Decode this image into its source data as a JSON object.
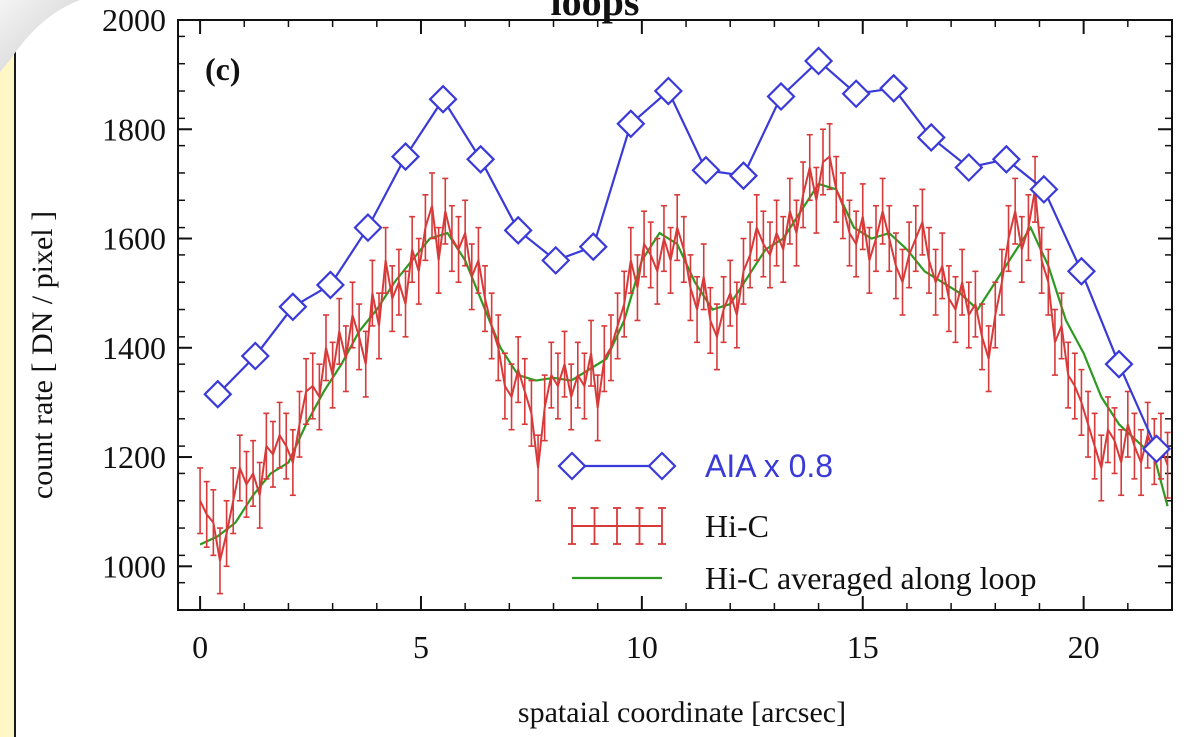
{
  "figure": {
    "title": "loops",
    "panel_label": "(c)"
  },
  "colors": {
    "aia": "#3a3ad8",
    "hic": "#d83a3a",
    "hic_avg": "#2e9a22",
    "axis": "#111111",
    "frame_accent": "#fff8c6"
  },
  "chart_data": {
    "type": "line",
    "title": "loops",
    "xlabel": "spataial coordinate  [arcsec]",
    "ylabel": "count rate  [ DN / pixel ]",
    "xlim": [
      -0.5,
      22
    ],
    "ylim": [
      920,
      2000
    ],
    "xticks": [
      0,
      5,
      10,
      15,
      20
    ],
    "yticks": [
      1000,
      1200,
      1400,
      1600,
      1800,
      2000
    ],
    "legend_position": "bottom-right",
    "series": [
      {
        "name": "AIA x 0.8",
        "marker": "diamond",
        "x": [
          0.4,
          1.25,
          2.1,
          2.95,
          3.8,
          4.65,
          5.5,
          6.35,
          7.2,
          8.05,
          8.9,
          9.75,
          10.6,
          11.45,
          12.3,
          13.15,
          14.0,
          14.85,
          15.7,
          16.55,
          17.4,
          18.25,
          19.1,
          19.95,
          20.8,
          21.65
        ],
        "y": [
          1315,
          1385,
          1475,
          1515,
          1620,
          1750,
          1855,
          1745,
          1615,
          1560,
          1585,
          1810,
          1870,
          1725,
          1715,
          1860,
          1925,
          1865,
          1875,
          1785,
          1730,
          1745,
          1690,
          1540,
          1370,
          1215
        ]
      },
      {
        "name": "Hi-C",
        "style": "error_bars",
        "x": [
          0.0,
          0.15,
          0.3,
          0.45,
          0.6,
          0.75,
          0.9,
          1.05,
          1.2,
          1.35,
          1.5,
          1.65,
          1.8,
          1.95,
          2.1,
          2.25,
          2.4,
          2.55,
          2.7,
          2.85,
          3.0,
          3.15,
          3.3,
          3.45,
          3.6,
          3.75,
          3.9,
          4.05,
          4.2,
          4.35,
          4.5,
          4.65,
          4.8,
          4.95,
          5.1,
          5.25,
          5.4,
          5.55,
          5.7,
          5.85,
          6.0,
          6.15,
          6.3,
          6.45,
          6.6,
          6.75,
          6.9,
          7.05,
          7.2,
          7.35,
          7.5,
          7.65,
          7.8,
          7.95,
          8.1,
          8.25,
          8.4,
          8.55,
          8.7,
          8.85,
          9.0,
          9.15,
          9.3,
          9.45,
          9.6,
          9.75,
          9.9,
          10.05,
          10.2,
          10.35,
          10.5,
          10.65,
          10.8,
          10.95,
          11.1,
          11.25,
          11.4,
          11.55,
          11.7,
          11.85,
          12.0,
          12.15,
          12.3,
          12.45,
          12.6,
          12.75,
          12.9,
          13.05,
          13.2,
          13.35,
          13.5,
          13.65,
          13.8,
          13.95,
          14.1,
          14.25,
          14.4,
          14.55,
          14.7,
          14.85,
          15.0,
          15.15,
          15.3,
          15.45,
          15.6,
          15.75,
          15.9,
          16.05,
          16.2,
          16.35,
          16.5,
          16.65,
          16.8,
          16.95,
          17.1,
          17.25,
          17.4,
          17.55,
          17.7,
          17.85,
          18.0,
          18.15,
          18.3,
          18.45,
          18.6,
          18.75,
          18.9,
          19.05,
          19.2,
          19.35,
          19.5,
          19.65,
          19.8,
          19.95,
          20.1,
          20.25,
          20.4,
          20.55,
          20.7,
          20.85,
          21.0,
          21.15,
          21.3,
          21.45,
          21.6,
          21.75,
          21.9
        ],
        "y": [
          1120,
          1095,
          1080,
          1010,
          1060,
          1120,
          1180,
          1150,
          1170,
          1130,
          1220,
          1205,
          1240,
          1220,
          1190,
          1260,
          1320,
          1330,
          1310,
          1400,
          1350,
          1430,
          1380,
          1460,
          1420,
          1370,
          1500,
          1440,
          1560,
          1490,
          1520,
          1480,
          1580,
          1540,
          1620,
          1660,
          1560,
          1650,
          1600,
          1580,
          1610,
          1530,
          1560,
          1490,
          1440,
          1400,
          1330,
          1310,
          1360,
          1320,
          1280,
          1180,
          1290,
          1350,
          1330,
          1370,
          1310,
          1350,
          1330,
          1390,
          1290,
          1380,
          1400,
          1440,
          1480,
          1560,
          1510,
          1590,
          1570,
          1540,
          1600,
          1560,
          1620,
          1580,
          1510,
          1470,
          1530,
          1450,
          1420,
          1470,
          1500,
          1460,
          1540,
          1570,
          1620,
          1590,
          1570,
          1610,
          1580,
          1650,
          1610,
          1680,
          1730,
          1670,
          1740,
          1750,
          1690,
          1660,
          1610,
          1590,
          1640,
          1560,
          1600,
          1650,
          1600,
          1550,
          1520,
          1570,
          1600,
          1630,
          1560,
          1520,
          1550,
          1490,
          1470,
          1520,
          1460,
          1480,
          1420,
          1380,
          1460,
          1520,
          1600,
          1650,
          1580,
          1620,
          1690,
          1560,
          1520,
          1410,
          1440,
          1350,
          1330,
          1300,
          1260,
          1220,
          1180,
          1250,
          1230,
          1190,
          1260,
          1220,
          1190,
          1240,
          1210,
          1220,
          1185
        ],
        "error": 60
      },
      {
        "name": "Hi-C averaged along loop",
        "x": [
          0.0,
          0.4,
          0.8,
          1.2,
          1.6,
          2.0,
          2.4,
          2.8,
          3.2,
          3.6,
          4.0,
          4.4,
          4.8,
          5.2,
          5.6,
          6.0,
          6.4,
          6.8,
          7.2,
          7.6,
          8.0,
          8.4,
          8.8,
          9.2,
          9.6,
          10.0,
          10.4,
          10.8,
          11.2,
          11.6,
          12.0,
          12.4,
          12.8,
          13.2,
          13.6,
          14.0,
          14.4,
          14.8,
          15.2,
          15.6,
          16.0,
          16.4,
          16.8,
          17.2,
          17.6,
          18.0,
          18.4,
          18.8,
          19.2,
          19.6,
          20.0,
          20.4,
          20.8,
          21.2,
          21.6,
          21.9
        ],
        "y": [
          1040,
          1055,
          1080,
          1130,
          1170,
          1190,
          1260,
          1320,
          1370,
          1430,
          1470,
          1520,
          1560,
          1600,
          1610,
          1560,
          1480,
          1400,
          1350,
          1340,
          1345,
          1340,
          1360,
          1380,
          1450,
          1560,
          1610,
          1590,
          1520,
          1470,
          1480,
          1530,
          1580,
          1600,
          1650,
          1700,
          1690,
          1620,
          1600,
          1610,
          1580,
          1540,
          1520,
          1500,
          1470,
          1520,
          1570,
          1620,
          1550,
          1450,
          1390,
          1310,
          1260,
          1230,
          1200,
          1110
        ]
      }
    ]
  }
}
